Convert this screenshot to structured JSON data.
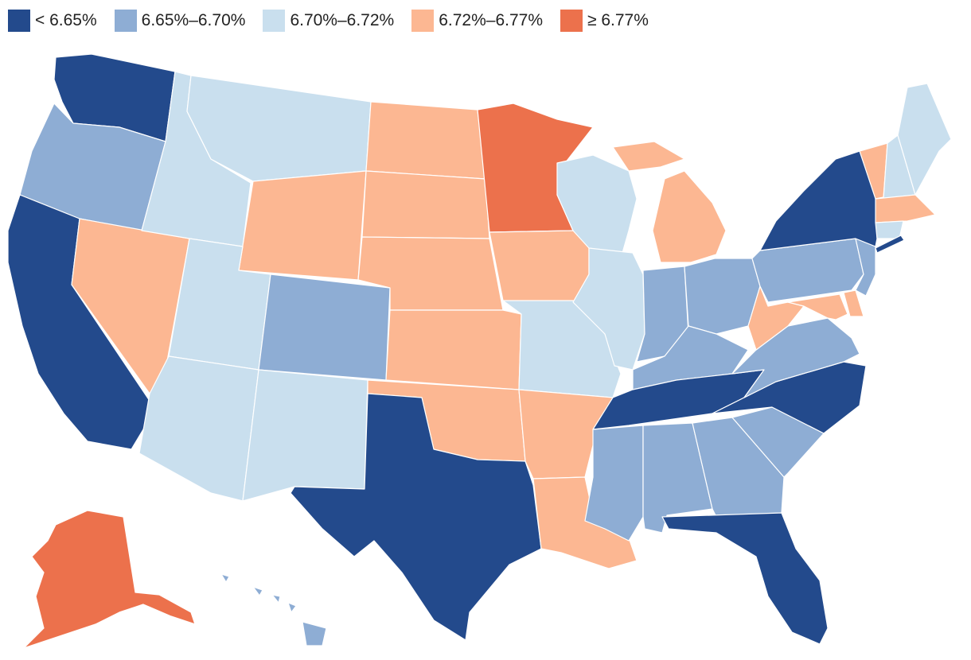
{
  "legend": {
    "bins": [
      {
        "label": "< 6.65%",
        "color": "#234a8c"
      },
      {
        "label": "6.65%–6.70%",
        "color": "#8eadd4"
      },
      {
        "label": "6.70%–6.72%",
        "color": "#c9dfee"
      },
      {
        "label": "6.72%–6.77%",
        "color": "#fcb792"
      },
      {
        "label": "≥ 6.77%",
        "color": "#ec714c"
      }
    ]
  },
  "states": {
    "WA": 0,
    "CA": 0,
    "TX": 0,
    "FL": 0,
    "NY": 0,
    "NC": 0,
    "TN": 0,
    "NJ_SHORE": 0,
    "MD_DE": 0,
    "OR": 1,
    "CO": 1,
    "PA": 1,
    "OH": 1,
    "IN": 1,
    "KY": 1,
    "VA": 1,
    "SC": 1,
    "GA": 1,
    "AL": 1,
    "MS": 1,
    "NJ": 1,
    "HI": 1,
    "ID": 2,
    "MT": 2,
    "UT": 2,
    "AZ": 2,
    "NM": 2,
    "MO": 2,
    "IL": 2,
    "WI": 2,
    "ME": 2,
    "NH": 2,
    "CT": 2,
    "NV": 3,
    "WY": 3,
    "ND": 3,
    "SD": 3,
    "NE": 3,
    "KS": 3,
    "OK": 3,
    "IA": 3,
    "AR": 3,
    "LA": 3,
    "MI": 3,
    "WV": 3,
    "VT": 3,
    "MA": 3,
    "MD": 3,
    "DE": 3,
    "MN": 4,
    "AK": 4
  }
}
